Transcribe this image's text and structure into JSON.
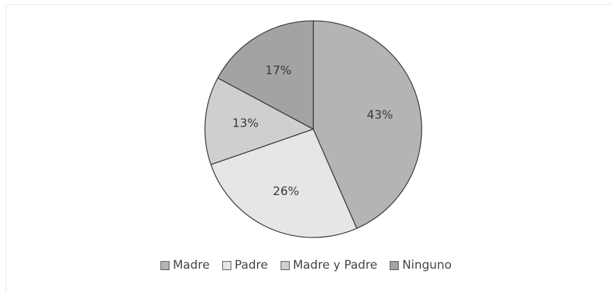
{
  "chart_data": {
    "type": "pie",
    "title": "",
    "slices": [
      {
        "name": "Madre",
        "value": 43,
        "label": "43%",
        "color": "#b4b4b4"
      },
      {
        "name": "Padre",
        "value": 26,
        "label": "26%",
        "color": "#e6e6e6"
      },
      {
        "name": "Madre y Padre",
        "value": 13,
        "label": "13%",
        "color": "#cfcfcf"
      },
      {
        "name": "Ninguno",
        "value": 17,
        "label": "17%",
        "color": "#a3a3a3"
      }
    ],
    "start_angle_deg": 0,
    "direction": "clockwise",
    "legend": {
      "placement": "bottom",
      "entries": [
        "Madre",
        "Padre",
        "Madre y Padre",
        "Ninguno"
      ]
    },
    "colors": {
      "slice_border": "#3a3a3a",
      "legend_swatch_border": "#555555"
    }
  }
}
